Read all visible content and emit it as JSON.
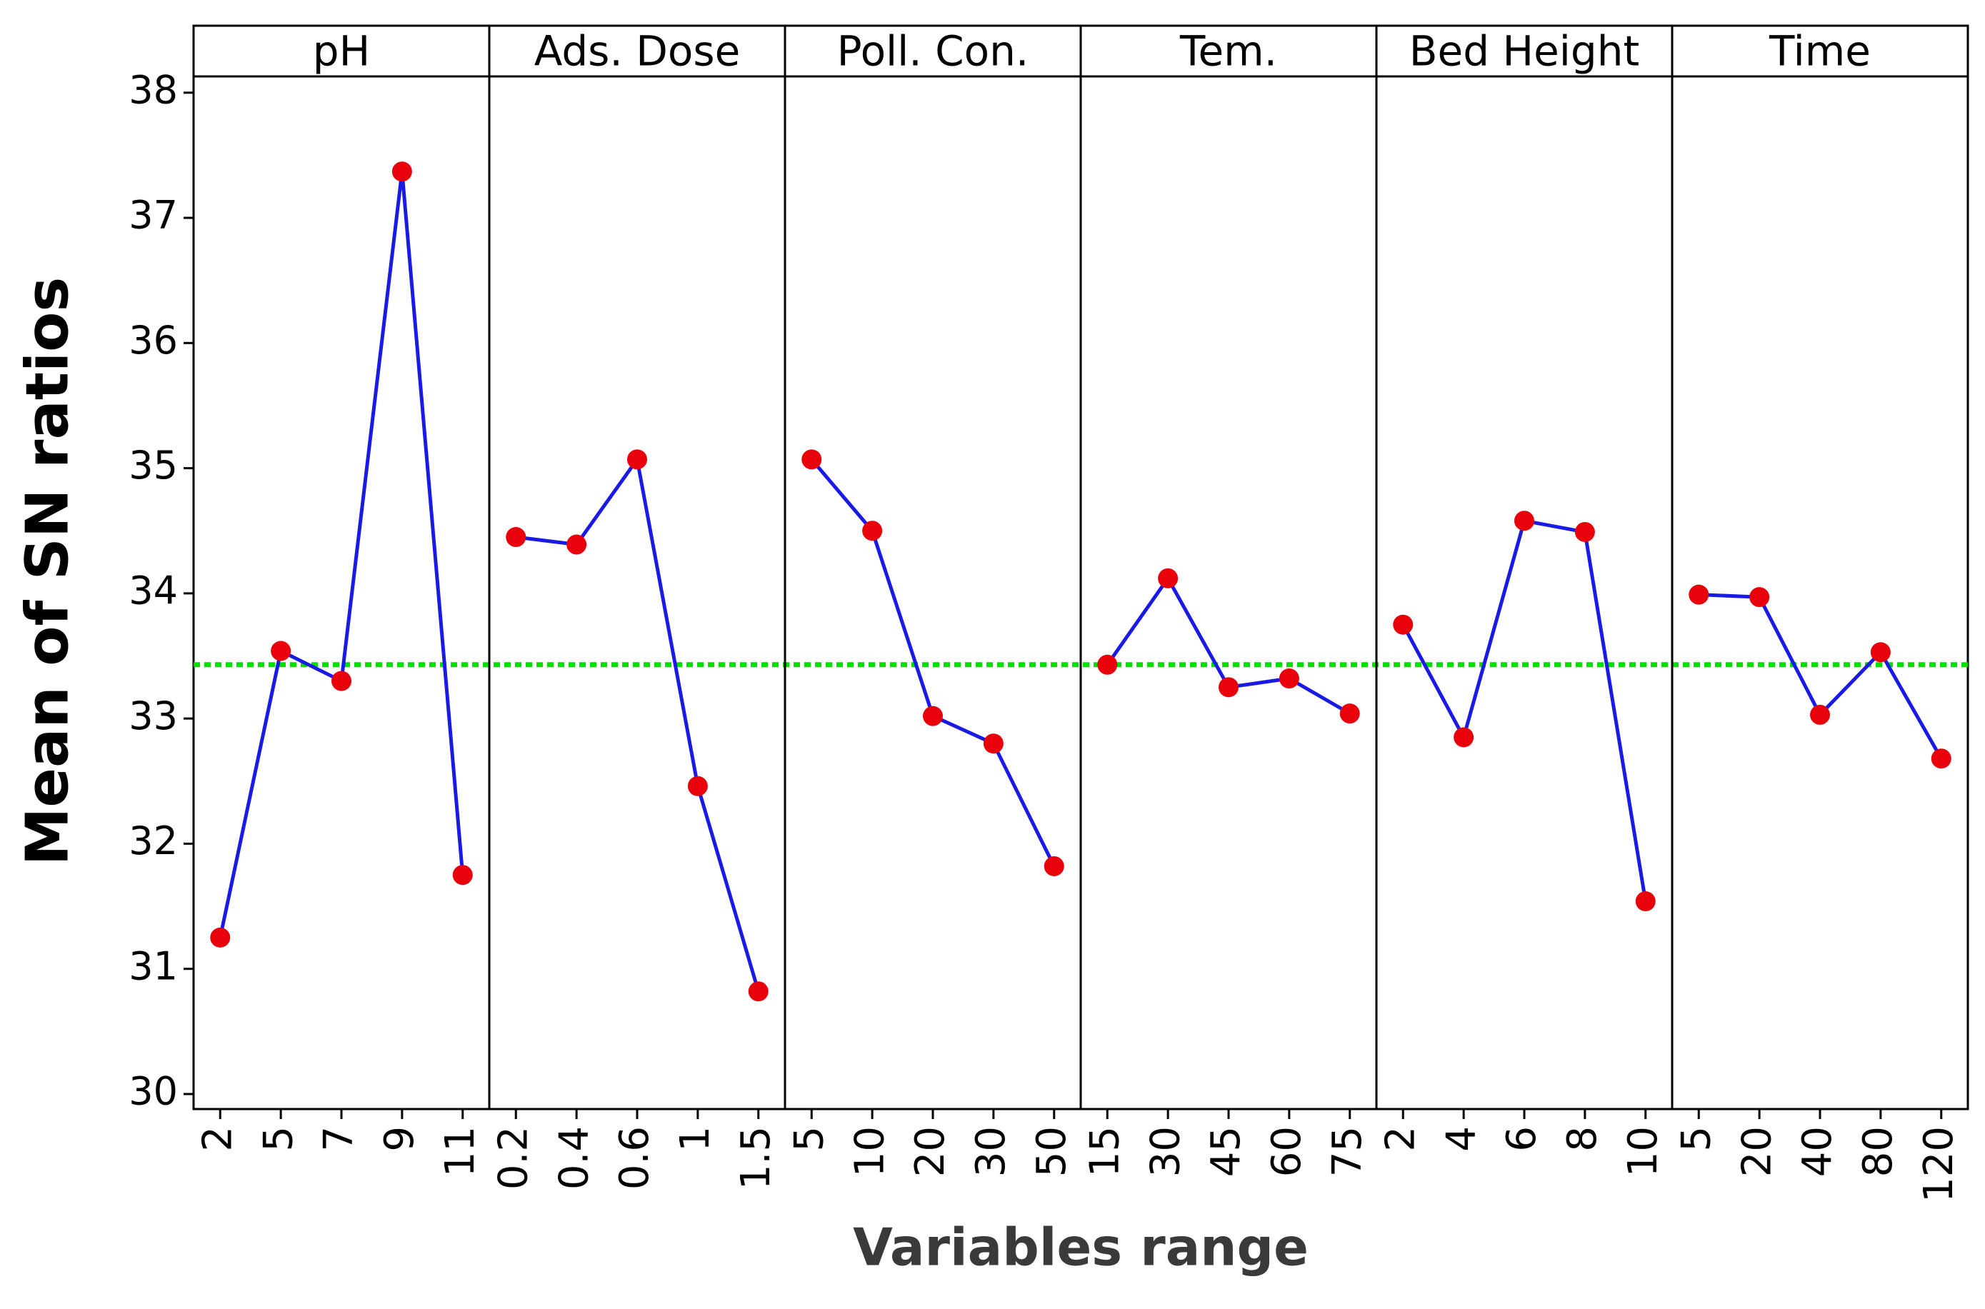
{
  "chart_data": {
    "type": "line",
    "ylabel": "Mean of SN ratios",
    "xlabel": "Variables range",
    "ylim": [
      29.88,
      38.13
    ],
    "yticks": [
      30,
      31,
      32,
      33,
      34,
      35,
      36,
      37,
      38
    ],
    "mean_line": 33.43,
    "line_color": "#1a1ae6",
    "marker_color": "#e8000b",
    "mean_color": "#00e000",
    "panels": [
      {
        "title": "pH",
        "categories": [
          "2",
          "5",
          "7",
          "9",
          "11"
        ],
        "values": [
          31.25,
          33.54,
          33.3,
          37.37,
          31.75
        ]
      },
      {
        "title": "Ads. Dose",
        "categories": [
          "0.2",
          "0.4",
          "0.6",
          "1",
          "1.5"
        ],
        "values": [
          34.45,
          34.39,
          35.07,
          32.46,
          30.82
        ]
      },
      {
        "title": "Poll. Con.",
        "categories": [
          "5",
          "10",
          "20",
          "30",
          "50"
        ],
        "values": [
          35.07,
          34.5,
          33.02,
          32.8,
          31.82
        ]
      },
      {
        "title": "Tem.",
        "categories": [
          "15",
          "30",
          "45",
          "60",
          "75"
        ],
        "values": [
          33.43,
          34.12,
          33.25,
          33.32,
          33.04
        ]
      },
      {
        "title": "Bed Height",
        "categories": [
          "2",
          "4",
          "6",
          "8",
          "10"
        ],
        "values": [
          33.75,
          32.85,
          34.58,
          34.49,
          31.54
        ]
      },
      {
        "title": "Time",
        "categories": [
          "5",
          "20",
          "40",
          "80",
          "120"
        ],
        "values": [
          33.99,
          33.97,
          33.03,
          33.53,
          32.68
        ]
      }
    ]
  }
}
